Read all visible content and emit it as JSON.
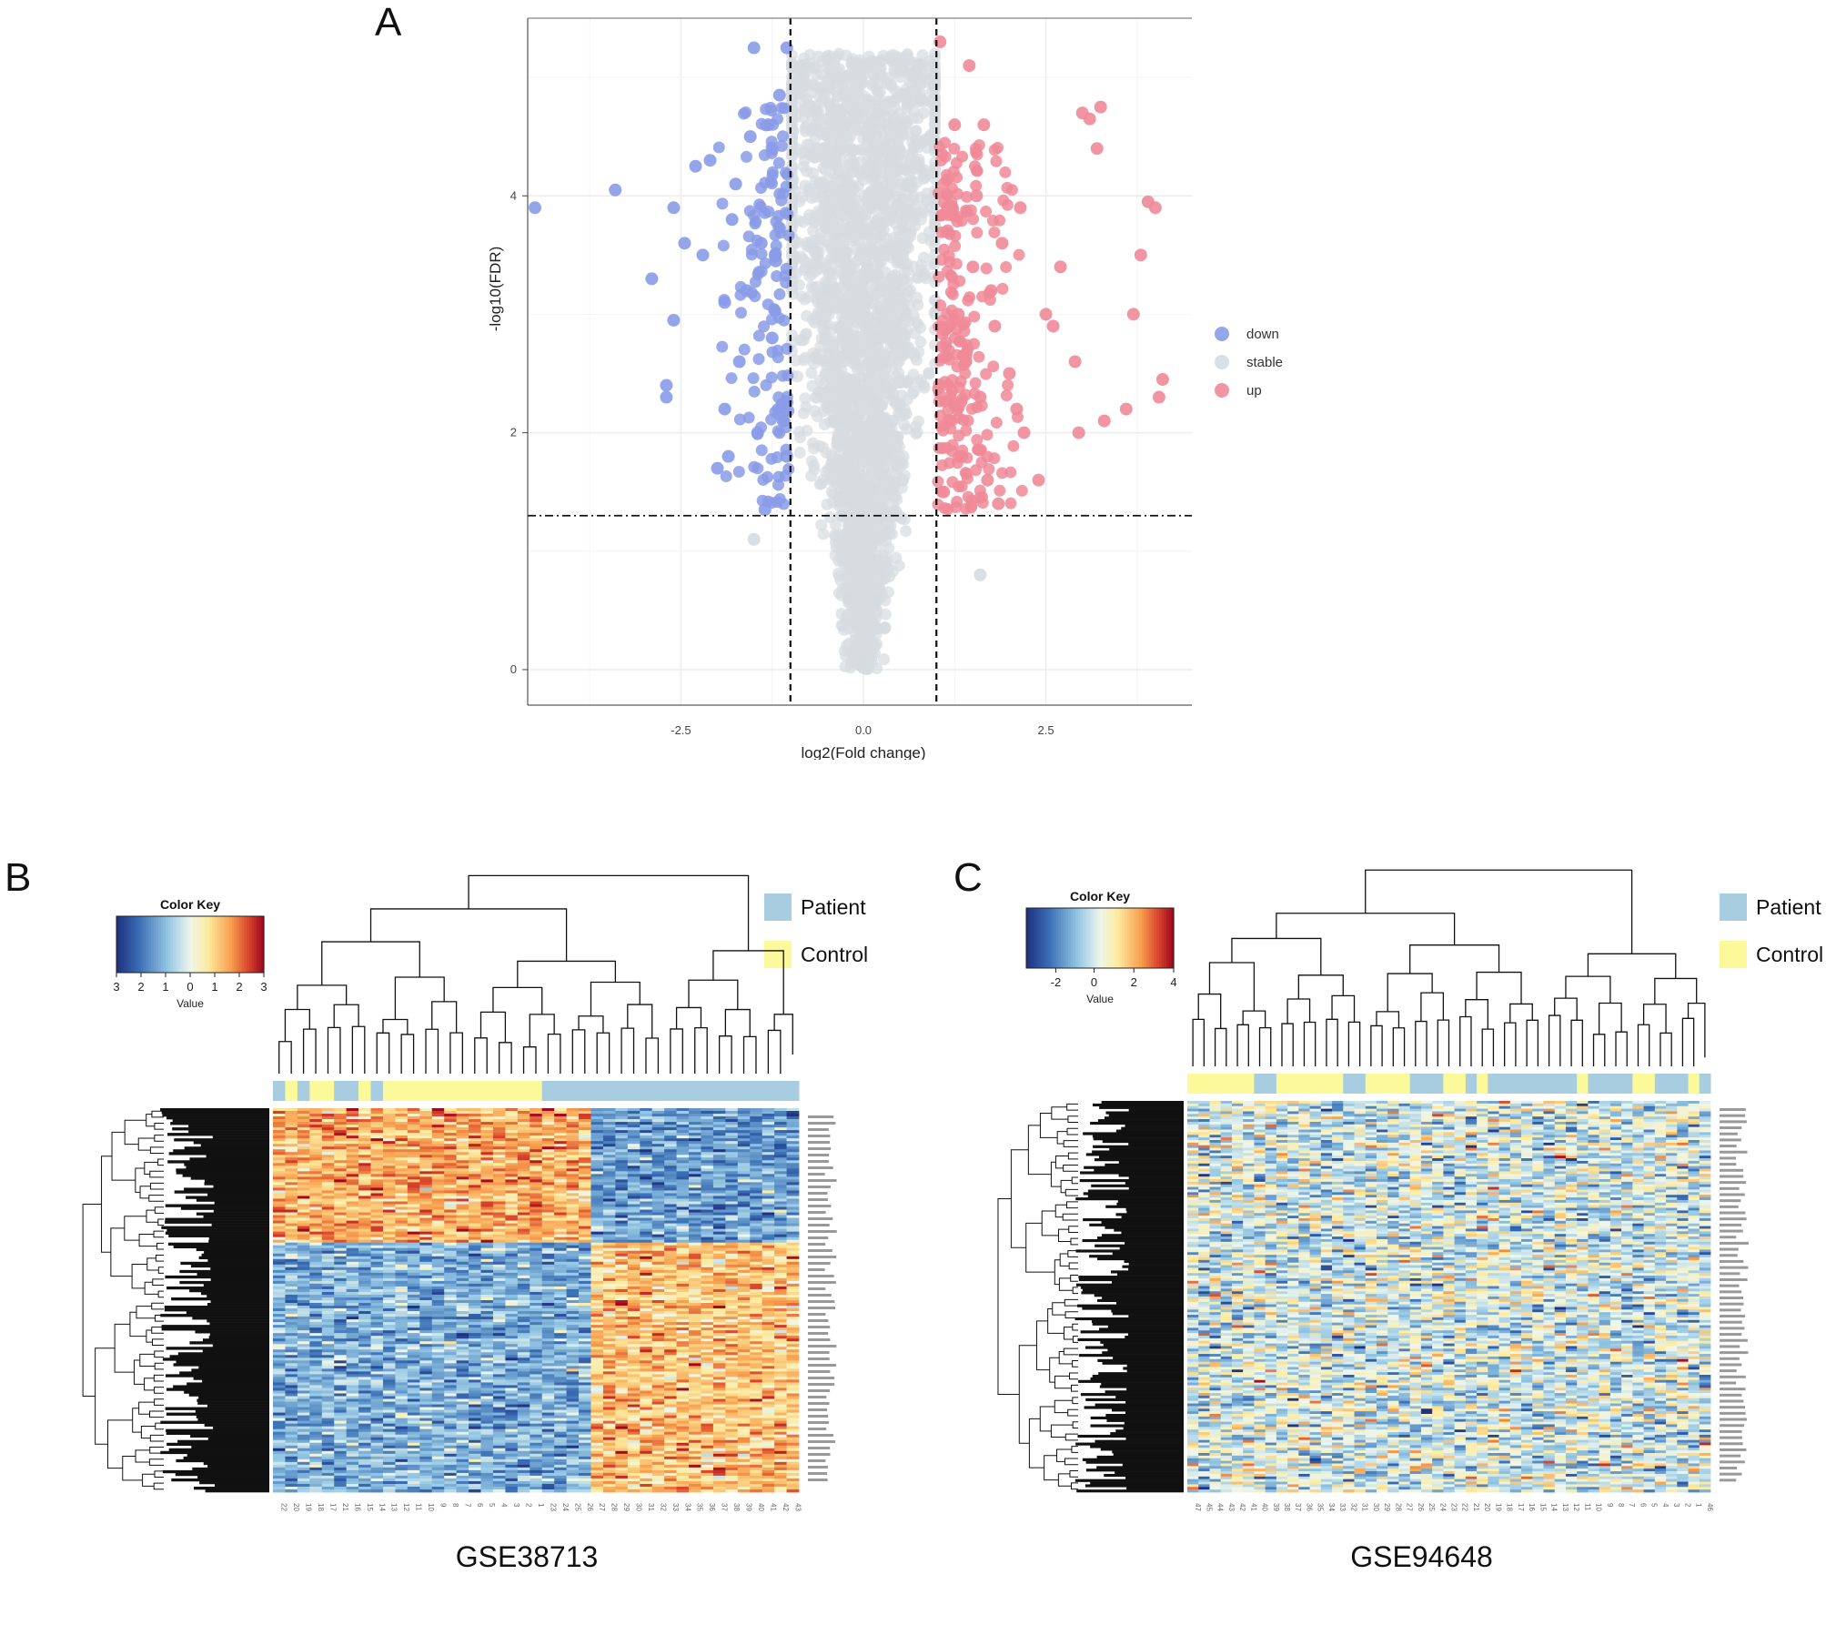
{
  "panels": {
    "a": "A",
    "b": "B",
    "c": "C"
  },
  "chart_data": [
    {
      "type": "scatter",
      "panel": "A",
      "title": "",
      "xlabel": "log2(Fold change)",
      "ylabel": "-log10(FDR)",
      "xlim": [
        -4.6,
        4.5
      ],
      "ylim": [
        -0.3,
        5.5
      ],
      "xticks": [
        "-2.5",
        "0.0",
        "2.5"
      ],
      "yticks": [
        "0",
        "2",
        "4"
      ],
      "thresholds": {
        "log2fc": [
          -1,
          1
        ],
        "neg_log10_fdr": 1.3
      },
      "legend": {
        "position": "right",
        "entries": [
          "down",
          "stable",
          "up"
        ]
      },
      "colors": {
        "down": "#8a9be8",
        "stable": "#d5dbe0",
        "up": "#f08a98"
      },
      "series": [
        {
          "name": "down",
          "points": [
            [
              -4.5,
              3.9
            ],
            [
              -3.4,
              4.05
            ],
            [
              -2.9,
              3.3
            ],
            [
              -2.7,
              2.3
            ],
            [
              -2.7,
              2.4
            ],
            [
              -2.6,
              2.95
            ],
            [
              -2.6,
              3.9
            ],
            [
              -2.45,
              3.6
            ],
            [
              -2.3,
              4.25
            ],
            [
              -2.2,
              3.5
            ],
            [
              -2.1,
              4.3
            ],
            [
              -2.0,
              1.7
            ],
            [
              -1.9,
              3.1
            ],
            [
              -1.9,
              2.2
            ],
            [
              -1.85,
              1.8
            ],
            [
              -1.8,
              3.8
            ],
            [
              -1.75,
              4.1
            ],
            [
              -1.7,
              2.6
            ],
            [
              -1.6,
              3.2
            ],
            [
              -1.55,
              4.5
            ],
            [
              -1.5,
              5.25
            ],
            [
              -1.45,
              2.0
            ],
            [
              -1.4,
              3.6
            ],
            [
              -1.35,
              1.35
            ],
            [
              -1.3,
              4.6
            ],
            [
              -1.25,
              2.8
            ],
            [
              -1.2,
              3.45
            ],
            [
              -1.15,
              4.85
            ],
            [
              -1.1,
              2.1
            ],
            [
              -1.05,
              5.25
            ],
            [
              -1.05,
              1.8
            ]
          ]
        },
        {
          "name": "stable",
          "points": [
            [
              -0.8,
              5.1
            ],
            [
              -0.6,
              4.1
            ],
            [
              -0.5,
              3.2
            ],
            [
              -0.4,
              2.1
            ],
            [
              -0.3,
              1.3
            ],
            [
              -0.2,
              0.6
            ],
            [
              0.0,
              0.05
            ],
            [
              0.2,
              0.6
            ],
            [
              0.3,
              1.3
            ],
            [
              0.4,
              2.1
            ],
            [
              0.5,
              3.2
            ],
            [
              0.6,
              4.1
            ],
            [
              0.75,
              5.1
            ],
            [
              -1.5,
              1.1
            ],
            [
              1.6,
              0.8
            ]
          ]
        },
        {
          "name": "up",
          "points": [
            [
              1.05,
              5.3
            ],
            [
              1.1,
              1.5
            ],
            [
              1.15,
              3.9
            ],
            [
              1.2,
              2.1
            ],
            [
              1.25,
              4.6
            ],
            [
              1.3,
              3.0
            ],
            [
              1.35,
              1.8
            ],
            [
              1.4,
              2.6
            ],
            [
              1.45,
              5.1
            ],
            [
              1.5,
              3.4
            ],
            [
              1.55,
              4.0
            ],
            [
              1.6,
              2.3
            ],
            [
              1.65,
              4.6
            ],
            [
              1.7,
              1.6
            ],
            [
              1.75,
              3.2
            ],
            [
              1.8,
              2.9
            ],
            [
              1.85,
              1.4
            ],
            [
              1.9,
              3.6
            ],
            [
              2.0,
              2.5
            ],
            [
              2.1,
              2.2
            ],
            [
              2.15,
              3.9
            ],
            [
              2.2,
              2.0
            ],
            [
              2.4,
              1.6
            ],
            [
              2.5,
              3.0
            ],
            [
              2.6,
              2.9
            ],
            [
              2.7,
              3.4
            ],
            [
              2.9,
              2.6
            ],
            [
              2.95,
              2.0
            ],
            [
              3.0,
              4.7
            ],
            [
              3.1,
              4.65
            ],
            [
              3.2,
              4.4
            ],
            [
              3.25,
              4.75
            ],
            [
              3.3,
              2.1
            ],
            [
              3.6,
              2.2
            ],
            [
              3.7,
              3.0
            ],
            [
              3.8,
              3.5
            ],
            [
              3.9,
              3.95
            ],
            [
              4.0,
              3.9
            ],
            [
              4.05,
              2.3
            ],
            [
              4.1,
              2.45
            ]
          ]
        }
      ]
    },
    {
      "type": "heatmap",
      "panel": "B",
      "title": "GSE38713",
      "color_key": {
        "title": "Color Key",
        "label": "Value",
        "ticks": [
          "3",
          "2",
          "1",
          "0",
          "1",
          "2",
          "3"
        ]
      },
      "legend": {
        "position": "top-right",
        "entries": [
          {
            "name": "Patient",
            "color": "#a8cce0"
          },
          {
            "name": "Control",
            "color": "#fcf99a"
          }
        ]
      },
      "column_labels": [
        "22",
        "20",
        "19",
        "18",
        "17",
        "21",
        "16",
        "15",
        "14",
        "13",
        "12",
        "11",
        "10",
        "9",
        "8",
        "7",
        "6",
        "5",
        "4",
        "3",
        "2",
        "1",
        "23",
        "24",
        "25",
        "26",
        "27",
        "28",
        "29",
        "30",
        "31",
        "32",
        "33",
        "34",
        "35",
        "36",
        "37",
        "38",
        "39",
        "40",
        "41",
        "42",
        "43"
      ],
      "column_groups": [
        "Patient",
        "Control",
        "Patient",
        "Control",
        "Control",
        "Patient",
        "Patient",
        "Control",
        "Patient",
        "Control",
        "Control",
        "Control",
        "Control",
        "Control",
        "Control",
        "Control",
        "Control",
        "Control",
        "Control",
        "Control",
        "Control",
        "Control",
        "Patient",
        "Patient",
        "Patient",
        "Patient",
        "Patient",
        "Patient",
        "Patient",
        "Patient",
        "Patient",
        "Patient",
        "Patient",
        "Patient",
        "Patient",
        "Patient",
        "Patient",
        "Patient",
        "Patient",
        "Patient",
        "Patient",
        "Patient",
        "Patient"
      ]
    },
    {
      "type": "heatmap",
      "panel": "C",
      "title": "GSE94648",
      "color_key": {
        "title": "Color Key",
        "label": "Value",
        "ticks": [
          "-2",
          "0",
          "2",
          "4"
        ]
      },
      "legend": {
        "position": "top-right",
        "entries": [
          {
            "name": "Patient",
            "color": "#a8cce0"
          },
          {
            "name": "Control",
            "color": "#fcf99a"
          }
        ]
      },
      "column_labels": [
        "47",
        "45",
        "44",
        "43",
        "42",
        "41",
        "40",
        "39",
        "38",
        "37",
        "36",
        "35",
        "34",
        "33",
        "32",
        "31",
        "30",
        "29",
        "28",
        "27",
        "26",
        "25",
        "24",
        "23",
        "22",
        "21",
        "20",
        "19",
        "18",
        "17",
        "16",
        "15",
        "14",
        "13",
        "12",
        "11",
        "10",
        "9",
        "8",
        "7",
        "6",
        "5",
        "4",
        "3",
        "2",
        "1",
        "46"
      ],
      "column_groups": [
        "Control",
        "Control",
        "Control",
        "Control",
        "Control",
        "Control",
        "Patient",
        "Patient",
        "Control",
        "Control",
        "Control",
        "Control",
        "Control",
        "Control",
        "Patient",
        "Patient",
        "Control",
        "Control",
        "Control",
        "Control",
        "Patient",
        "Patient",
        "Patient",
        "Control",
        "Control",
        "Patient",
        "Control",
        "Patient",
        "Patient",
        "Patient",
        "Patient",
        "Patient",
        "Patient",
        "Patient",
        "Patient",
        "Control",
        "Patient",
        "Patient",
        "Patient",
        "Patient",
        "Control",
        "Control",
        "Patient",
        "Patient",
        "Patient",
        "Control",
        "Patient"
      ]
    }
  ]
}
